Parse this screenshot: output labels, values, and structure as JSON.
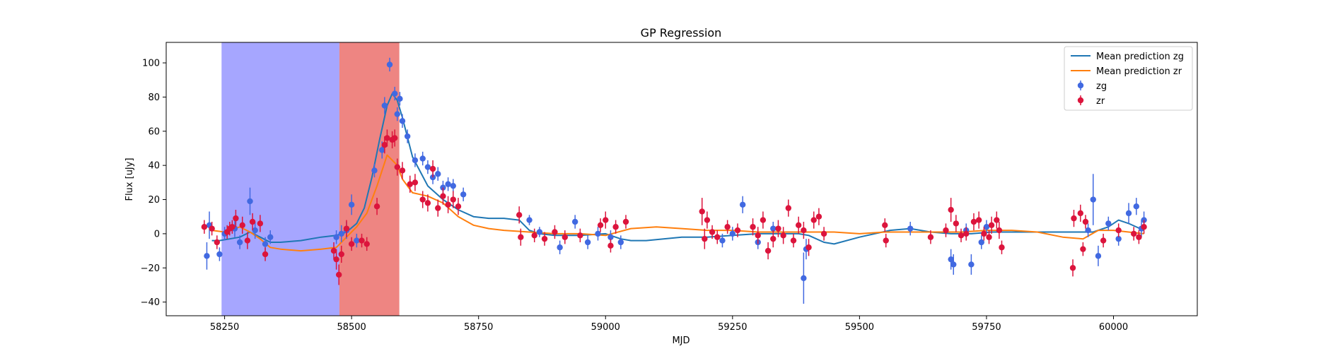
{
  "chart_data": {
    "type": "scatter",
    "title": "GP Regression",
    "xlabel": "MJD",
    "ylabel": "Flux [uJy]",
    "xlim": [
      58135,
      60165
    ],
    "ylim": [
      -48,
      112
    ],
    "xticks": [
      58250,
      58500,
      58750,
      59000,
      59250,
      59500,
      59750,
      60000
    ],
    "yticks": [
      -40,
      -20,
      0,
      20,
      40,
      60,
      80,
      100
    ],
    "grid": false,
    "legend_position": "top-right",
    "spans": [
      {
        "name": "blue-span",
        "x0": 58244,
        "x1": 58476,
        "color": "#0000ff",
        "opacity": 0.35
      },
      {
        "name": "red-span",
        "x0": 58476,
        "x1": 58594,
        "color": "#e0201c",
        "opacity": 0.55
      }
    ],
    "series": [
      {
        "name": "Mean prediction zg",
        "kind": "line",
        "color": "#1f77b4",
        "x": [
          58225,
          58240,
          58260,
          58280,
          58300,
          58320,
          58340,
          58360,
          58400,
          58440,
          58470,
          58490,
          58510,
          58525,
          58540,
          58555,
          58570,
          58580,
          58590,
          58600,
          58620,
          58650,
          58680,
          58710,
          58740,
          58770,
          58800,
          58830,
          58850,
          58870,
          58900,
          58950,
          59000,
          59030,
          59050,
          59080,
          59150,
          59200,
          59250,
          59300,
          59350,
          59380,
          59400,
          59430,
          59450,
          59500,
          59560,
          59600,
          59640,
          59680,
          59720,
          59760,
          59800,
          59900,
          59960,
          59990,
          60010,
          60030,
          60060
        ],
        "values": [
          -4,
          -4,
          -3,
          -2,
          1,
          -2,
          -5,
          -5,
          -4,
          -2,
          -1,
          1,
          6,
          15,
          33,
          55,
          75,
          82,
          78,
          68,
          45,
          28,
          20,
          14,
          10,
          9,
          9,
          8,
          2,
          0,
          -1,
          -1,
          0,
          -3,
          -4,
          -4,
          -2,
          -2,
          -1,
          0,
          0,
          0,
          -1,
          -5,
          -6,
          -2,
          2,
          3,
          1,
          0,
          0,
          1,
          1,
          1,
          1,
          4,
          8,
          6,
          2
        ]
      },
      {
        "name": "Mean prediction zr",
        "kind": "line",
        "color": "#ff7f0e",
        "x": [
          58225,
          58250,
          58280,
          58300,
          58320,
          58340,
          58360,
          58400,
          58440,
          58470,
          58490,
          58510,
          58530,
          58550,
          58570,
          58590,
          58600,
          58620,
          58650,
          58680,
          58710,
          58740,
          58770,
          58800,
          58850,
          58900,
          58950,
          59000,
          59050,
          59100,
          59150,
          59200,
          59250,
          59300,
          59350,
          59400,
          59450,
          59500,
          59550,
          59600,
          59650,
          59700,
          59750,
          59800,
          59850,
          59900,
          59940,
          59970,
          60000,
          60030,
          60060
        ],
        "values": [
          2,
          1,
          4,
          1,
          -3,
          -8,
          -9,
          -10,
          -9,
          -8,
          -2,
          4,
          12,
          28,
          46,
          40,
          32,
          24,
          22,
          18,
          10,
          5,
          3,
          2,
          1,
          0,
          0,
          -1,
          3,
          4,
          3,
          2,
          2,
          1,
          1,
          1,
          1,
          0,
          1,
          1,
          1,
          1,
          2,
          2,
          1,
          -2,
          -3,
          2,
          2,
          1,
          0
        ]
      },
      {
        "name": "zg",
        "kind": "errorbar",
        "color": "#4169e1",
        "points": [
          {
            "x": 58215,
            "y": -13,
            "e": 8
          },
          {
            "x": 58220,
            "y": 5,
            "e": 8
          },
          {
            "x": 58240,
            "y": -12,
            "e": 4
          },
          {
            "x": 58250,
            "y": 0,
            "e": 4
          },
          {
            "x": 58270,
            "y": 3,
            "e": 5
          },
          {
            "x": 58280,
            "y": -5,
            "e": 4
          },
          {
            "x": 58300,
            "y": 19,
            "e": 8
          },
          {
            "x": 58310,
            "y": 2,
            "e": 5
          },
          {
            "x": 58330,
            "y": -6,
            "e": 4
          },
          {
            "x": 58340,
            "y": -2,
            "e": 4
          },
          {
            "x": 58470,
            "y": -2,
            "e": 4
          },
          {
            "x": 58480,
            "y": 0,
            "e": 5
          },
          {
            "x": 58490,
            "y": 2,
            "e": 5
          },
          {
            "x": 58500,
            "y": 17,
            "e": 6
          },
          {
            "x": 58510,
            "y": -4,
            "e": 4
          },
          {
            "x": 58545,
            "y": 37,
            "e": 4
          },
          {
            "x": 58560,
            "y": 49,
            "e": 5
          },
          {
            "x": 58565,
            "y": 75,
            "e": 5
          },
          {
            "x": 58575,
            "y": 99,
            "e": 4
          },
          {
            "x": 58585,
            "y": 82,
            "e": 4
          },
          {
            "x": 58590,
            "y": 70,
            "e": 4
          },
          {
            "x": 58595,
            "y": 79,
            "e": 4
          },
          {
            "x": 58600,
            "y": 66,
            "e": 4
          },
          {
            "x": 58610,
            "y": 57,
            "e": 4
          },
          {
            "x": 58625,
            "y": 43,
            "e": 4
          },
          {
            "x": 58640,
            "y": 44,
            "e": 4
          },
          {
            "x": 58650,
            "y": 39,
            "e": 4
          },
          {
            "x": 58660,
            "y": 33,
            "e": 4
          },
          {
            "x": 58670,
            "y": 35,
            "e": 4
          },
          {
            "x": 58680,
            "y": 27,
            "e": 4
          },
          {
            "x": 58690,
            "y": 29,
            "e": 4
          },
          {
            "x": 58700,
            "y": 28,
            "e": 4
          },
          {
            "x": 58720,
            "y": 23,
            "e": 4
          },
          {
            "x": 58850,
            "y": 8,
            "e": 3
          },
          {
            "x": 58870,
            "y": 1,
            "e": 3
          },
          {
            "x": 58910,
            "y": -8,
            "e": 4
          },
          {
            "x": 58940,
            "y": 7,
            "e": 4
          },
          {
            "x": 58965,
            "y": -5,
            "e": 4
          },
          {
            "x": 58985,
            "y": 0,
            "e": 4
          },
          {
            "x": 59010,
            "y": -2,
            "e": 4
          },
          {
            "x": 59030,
            "y": -5,
            "e": 4
          },
          {
            "x": 59230,
            "y": -4,
            "e": 4
          },
          {
            "x": 59250,
            "y": 0,
            "e": 4
          },
          {
            "x": 59270,
            "y": 17,
            "e": 5
          },
          {
            "x": 59300,
            "y": -5,
            "e": 4
          },
          {
            "x": 59330,
            "y": 3,
            "e": 4
          },
          {
            "x": 59390,
            "y": -26,
            "e": 15
          },
          {
            "x": 59395,
            "y": -9,
            "e": 6
          },
          {
            "x": 59600,
            "y": 3,
            "e": 4
          },
          {
            "x": 59680,
            "y": -15,
            "e": 6
          },
          {
            "x": 59685,
            "y": -18,
            "e": 6
          },
          {
            "x": 59710,
            "y": 2,
            "e": 4
          },
          {
            "x": 59720,
            "y": -18,
            "e": 6
          },
          {
            "x": 59740,
            "y": -5,
            "e": 4
          },
          {
            "x": 59750,
            "y": 4,
            "e": 4
          },
          {
            "x": 59950,
            "y": 2,
            "e": 4
          },
          {
            "x": 59960,
            "y": 20,
            "e": 15
          },
          {
            "x": 59970,
            "y": -13,
            "e": 6
          },
          {
            "x": 59990,
            "y": 6,
            "e": 4
          },
          {
            "x": 60010,
            "y": -3,
            "e": 4
          },
          {
            "x": 60030,
            "y": 12,
            "e": 6
          },
          {
            "x": 60045,
            "y": 16,
            "e": 5
          },
          {
            "x": 60055,
            "y": 3,
            "e": 5
          },
          {
            "x": 60060,
            "y": 8,
            "e": 5
          }
        ]
      },
      {
        "name": "zr",
        "kind": "errorbar",
        "color": "#dc143c",
        "points": [
          {
            "x": 58210,
            "y": 4,
            "e": 4
          },
          {
            "x": 58225,
            "y": 3,
            "e": 4
          },
          {
            "x": 58235,
            "y": -5,
            "e": 4
          },
          {
            "x": 58255,
            "y": 1,
            "e": 4
          },
          {
            "x": 58260,
            "y": 3,
            "e": 4
          },
          {
            "x": 58265,
            "y": 4,
            "e": 4
          },
          {
            "x": 58272,
            "y": 9,
            "e": 5
          },
          {
            "x": 58285,
            "y": 5,
            "e": 5
          },
          {
            "x": 58295,
            "y": -4,
            "e": 5
          },
          {
            "x": 58305,
            "y": 7,
            "e": 5
          },
          {
            "x": 58320,
            "y": 6,
            "e": 5
          },
          {
            "x": 58330,
            "y": -12,
            "e": 4
          },
          {
            "x": 58465,
            "y": -10,
            "e": 5
          },
          {
            "x": 58470,
            "y": -15,
            "e": 6
          },
          {
            "x": 58475,
            "y": -24,
            "e": 6
          },
          {
            "x": 58480,
            "y": -12,
            "e": 5
          },
          {
            "x": 58490,
            "y": 3,
            "e": 5
          },
          {
            "x": 58500,
            "y": -6,
            "e": 4
          },
          {
            "x": 58520,
            "y": -4,
            "e": 4
          },
          {
            "x": 58530,
            "y": -6,
            "e": 4
          },
          {
            "x": 58550,
            "y": 16,
            "e": 5
          },
          {
            "x": 58565,
            "y": 52,
            "e": 5
          },
          {
            "x": 58570,
            "y": 56,
            "e": 5
          },
          {
            "x": 58580,
            "y": 55,
            "e": 5
          },
          {
            "x": 58585,
            "y": 56,
            "e": 5
          },
          {
            "x": 58590,
            "y": 39,
            "e": 5
          },
          {
            "x": 58600,
            "y": 37,
            "e": 5
          },
          {
            "x": 58615,
            "y": 29,
            "e": 5
          },
          {
            "x": 58625,
            "y": 30,
            "e": 5
          },
          {
            "x": 58640,
            "y": 20,
            "e": 5
          },
          {
            "x": 58650,
            "y": 18,
            "e": 5
          },
          {
            "x": 58660,
            "y": 38,
            "e": 5
          },
          {
            "x": 58670,
            "y": 15,
            "e": 5
          },
          {
            "x": 58680,
            "y": 22,
            "e": 5
          },
          {
            "x": 58690,
            "y": 17,
            "e": 5
          },
          {
            "x": 58700,
            "y": 20,
            "e": 5
          },
          {
            "x": 58710,
            "y": 16,
            "e": 5
          },
          {
            "x": 58830,
            "y": 11,
            "e": 5
          },
          {
            "x": 58833,
            "y": -2,
            "e": 5
          },
          {
            "x": 58860,
            "y": -1,
            "e": 4
          },
          {
            "x": 58880,
            "y": -3,
            "e": 4
          },
          {
            "x": 58900,
            "y": 1,
            "e": 4
          },
          {
            "x": 58920,
            "y": -2,
            "e": 4
          },
          {
            "x": 58950,
            "y": -1,
            "e": 4
          },
          {
            "x": 58990,
            "y": 5,
            "e": 4
          },
          {
            "x": 59000,
            "y": 8,
            "e": 5
          },
          {
            "x": 59010,
            "y": -7,
            "e": 4
          },
          {
            "x": 59020,
            "y": 4,
            "e": 4
          },
          {
            "x": 59040,
            "y": 7,
            "e": 4
          },
          {
            "x": 59190,
            "y": 13,
            "e": 8
          },
          {
            "x": 59195,
            "y": -3,
            "e": 6
          },
          {
            "x": 59200,
            "y": 8,
            "e": 5
          },
          {
            "x": 59210,
            "y": 1,
            "e": 4
          },
          {
            "x": 59220,
            "y": -2,
            "e": 4
          },
          {
            "x": 59240,
            "y": 4,
            "e": 4
          },
          {
            "x": 59260,
            "y": 2,
            "e": 4
          },
          {
            "x": 59290,
            "y": 4,
            "e": 5
          },
          {
            "x": 59300,
            "y": -1,
            "e": 5
          },
          {
            "x": 59310,
            "y": 8,
            "e": 5
          },
          {
            "x": 59320,
            "y": -10,
            "e": 5
          },
          {
            "x": 59330,
            "y": -3,
            "e": 5
          },
          {
            "x": 59340,
            "y": 3,
            "e": 5
          },
          {
            "x": 59350,
            "y": -1,
            "e": 5
          },
          {
            "x": 59360,
            "y": 15,
            "e": 5
          },
          {
            "x": 59370,
            "y": -4,
            "e": 4
          },
          {
            "x": 59380,
            "y": 5,
            "e": 5
          },
          {
            "x": 59390,
            "y": 2,
            "e": 5
          },
          {
            "x": 59400,
            "y": -8,
            "e": 5
          },
          {
            "x": 59410,
            "y": 8,
            "e": 5
          },
          {
            "x": 59420,
            "y": 10,
            "e": 5
          },
          {
            "x": 59430,
            "y": 0,
            "e": 4
          },
          {
            "x": 59550,
            "y": 5,
            "e": 4
          },
          {
            "x": 59552,
            "y": -4,
            "e": 4
          },
          {
            "x": 59640,
            "y": -2,
            "e": 4
          },
          {
            "x": 59670,
            "y": 2,
            "e": 4
          },
          {
            "x": 59680,
            "y": 14,
            "e": 7
          },
          {
            "x": 59690,
            "y": 6,
            "e": 5
          },
          {
            "x": 59700,
            "y": -1,
            "e": 4
          },
          {
            "x": 59710,
            "y": 0,
            "e": 4
          },
          {
            "x": 59725,
            "y": 7,
            "e": 5
          },
          {
            "x": 59735,
            "y": 8,
            "e": 5
          },
          {
            "x": 59745,
            "y": 0,
            "e": 4
          },
          {
            "x": 59755,
            "y": -2,
            "e": 4
          },
          {
            "x": 59760,
            "y": 5,
            "e": 5
          },
          {
            "x": 59770,
            "y": 8,
            "e": 5
          },
          {
            "x": 59775,
            "y": 2,
            "e": 5
          },
          {
            "x": 59780,
            "y": -8,
            "e": 4
          },
          {
            "x": 59920,
            "y": -20,
            "e": 5
          },
          {
            "x": 59922,
            "y": 9,
            "e": 5
          },
          {
            "x": 59935,
            "y": 12,
            "e": 5
          },
          {
            "x": 59940,
            "y": -9,
            "e": 4
          },
          {
            "x": 59945,
            "y": 7,
            "e": 4
          },
          {
            "x": 59980,
            "y": -4,
            "e": 4
          },
          {
            "x": 60010,
            "y": 2,
            "e": 4
          },
          {
            "x": 60040,
            "y": 0,
            "e": 4
          },
          {
            "x": 60050,
            "y": -2,
            "e": 4
          },
          {
            "x": 60060,
            "y": 4,
            "e": 4
          }
        ]
      }
    ],
    "legend": [
      {
        "label": "Mean prediction zg",
        "kind": "line",
        "color": "#1f77b4"
      },
      {
        "label": "Mean prediction zr",
        "kind": "line",
        "color": "#ff7f0e"
      },
      {
        "label": "zg",
        "kind": "errorbar",
        "color": "#4169e1"
      },
      {
        "label": "zr",
        "kind": "errorbar",
        "color": "#dc143c"
      }
    ]
  }
}
